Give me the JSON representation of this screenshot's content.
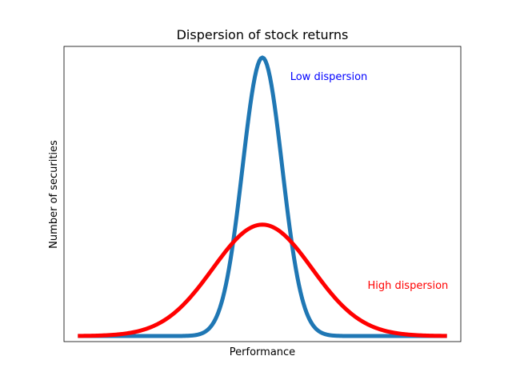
{
  "chart_data": {
    "type": "line",
    "title": "Dispersion of stock returns",
    "xlabel": "Performance",
    "ylabel": "Number of securities",
    "xlim": [
      -5,
      5
    ],
    "ylim": [
      -0.02,
      1.04
    ],
    "grid": false,
    "x_ticks_visible": false,
    "y_ticks_visible": false,
    "series": [
      {
        "name": "",
        "color": "#1f77b4",
        "distribution": "normal",
        "mean": 0,
        "std_dev": 0.5,
        "peak": 1.0
      },
      {
        "name": "",
        "color": "#ff0000",
        "distribution": "normal",
        "mean": 0,
        "std_dev": 1.25,
        "peak": 0.4
      }
    ],
    "annotations": [
      {
        "text": "Low dispersion",
        "x": 0.7,
        "y": 0.92,
        "color": "#0000ff"
      },
      {
        "text": "High dispersion",
        "x": 2.65,
        "y": 0.17,
        "color": "#ff0000"
      }
    ]
  }
}
